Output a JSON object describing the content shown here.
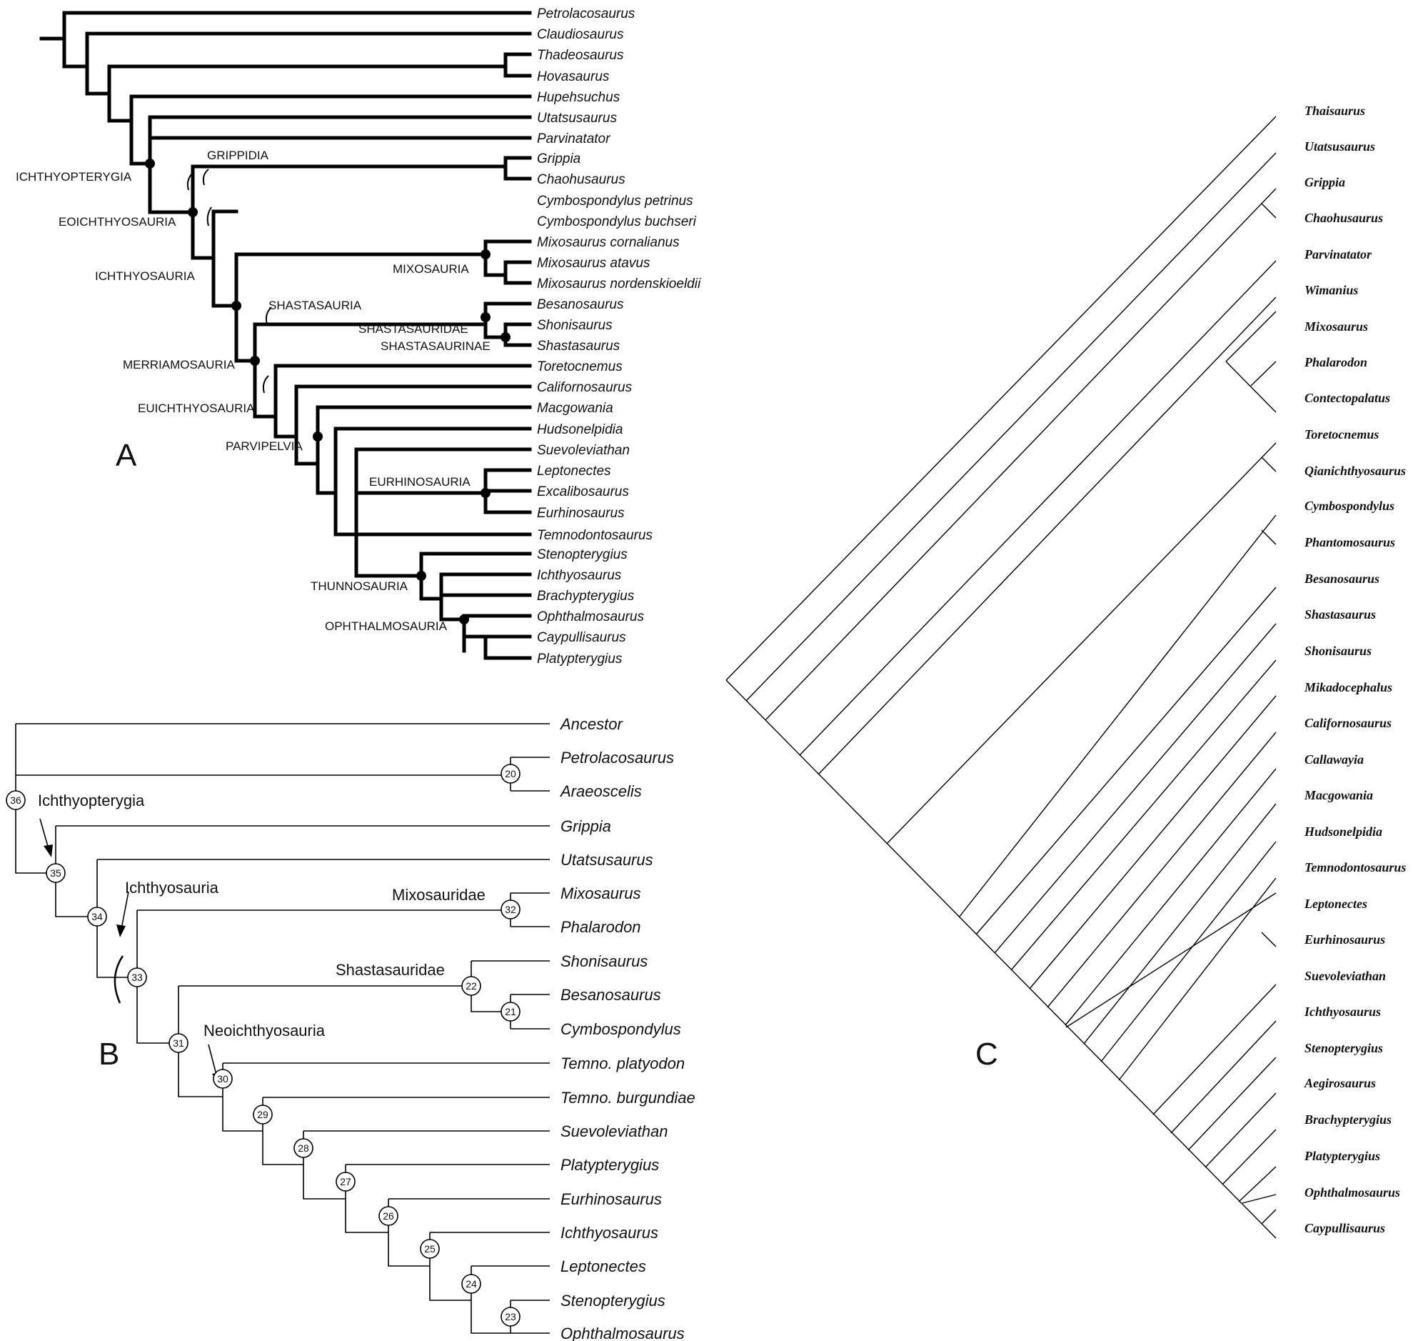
{
  "panelA": {
    "label": "A",
    "taxa": [
      "Petrolacosaurus",
      "Claudiosaurus",
      "Thadeosaurus",
      "Hovasaurus",
      "Hupehsuchus",
      "Utatsusaurus",
      "Parvinatator",
      "Grippia",
      "Chaohusaurus",
      "Cymbospondylus petrinus",
      "Cymbospondylus buchseri",
      "Mixosaurus cornalianus",
      "Mixosaurus atavus",
      "Mixosaurus nordenskioeldii",
      "Besanosaurus",
      "Shonisaurus",
      "Shastasaurus",
      "Toretocnemus",
      "Californosaurus",
      "Macgowania",
      "Hudsonelpidia",
      "Suevoleviathan",
      "Leptonectes",
      "Excalibosaurus",
      "Eurhinosaurus",
      "Temnodontosaurus",
      "Stenopterygius",
      "Ichthyosaurus",
      "Brachypterygius",
      "Ophthalmosaurus",
      "Caypullisaurus",
      "Platypterygius"
    ],
    "clades": {
      "ichthyopterygia": "ICHTHYOPTERYGIA",
      "grippidia": "GRIPPIDIA",
      "eoichthyosauria": "EOICHTHYOSAURIA",
      "ichthyosauria": "ICHTHYOSAURIA",
      "mixosauria": "MIXOSAURIA",
      "shastasauria": "SHASTASAURIA",
      "shastasauridae": "SHASTASAURIDAE",
      "shastasaurinae": "SHASTASAURINAE",
      "merriamosauria": "MERRIAMOSAURIA",
      "euichthyosauria": "EUICHTHYOSAURIA",
      "parvipelvia": "PARVIPELVIA",
      "eurhinosauria": "EURHINOSAURIA",
      "thunnosauria": "THUNNOSAURIA",
      "ophthalmosauria": "OPHTHALMOSAURIA"
    }
  },
  "panelB": {
    "label": "B",
    "taxa": [
      "Ancestor",
      "Petrolacosaurus",
      "Araeoscelis",
      "Grippia",
      "Utatsusaurus",
      "Mixosaurus",
      "Phalarodon",
      "Shonisaurus",
      "Besanosaurus",
      "Cymbospondylus",
      "Temno. platyodon",
      "Temno. burgundiae",
      "Suevoleviathan",
      "Platypterygius",
      "Eurhinosaurus",
      "Ichthyosaurus",
      "Leptonectes",
      "Stenopterygius",
      "Ophthalmosaurus"
    ],
    "clades": {
      "ichthyopterygia": "Ichthyopterygia",
      "ichthyosauria": "Ichthyosauria",
      "mixosauridae": "Mixosauridae",
      "shastasauridae": "Shastasauridae",
      "neoichthyosauria": "Neoichthyosauria"
    },
    "nodes": {
      "n20": "20",
      "n21": "21",
      "n22": "22",
      "n23": "23",
      "n24": "24",
      "n25": "25",
      "n26": "26",
      "n27": "27",
      "n28": "28",
      "n29": "29",
      "n30": "30",
      "n31": "31",
      "n32": "32",
      "n33": "33",
      "n34": "34",
      "n35": "35",
      "n36": "36"
    }
  },
  "panelC": {
    "label": "C",
    "taxa": [
      "Thaisaurus",
      "Utatsusaurus",
      "Grippia",
      "Chaohusaurus",
      "Parvinatator",
      "Wimanius",
      "Mixosaurus",
      "Phalarodon",
      "Contectopalatus",
      "Toretocnemus",
      "Qianichthyosaurus",
      "Cymbospondylus",
      "Phantomosaurus",
      "Besanosaurus",
      "Shastasaurus",
      "Shonisaurus",
      "Mikadocephalus",
      "Californosaurus",
      "Callawayia",
      "Macgowania",
      "Hudsonelpidia",
      "Temnodontosaurus",
      "Leptonectes",
      "Eurhinosaurus",
      "Suevoleviathan",
      "Ichthyosaurus",
      "Stenopterygius",
      "Aegirosaurus",
      "Brachypterygius",
      "Platypterygius",
      "Ophthalmosaurus",
      "Caypullisaurus"
    ]
  }
}
